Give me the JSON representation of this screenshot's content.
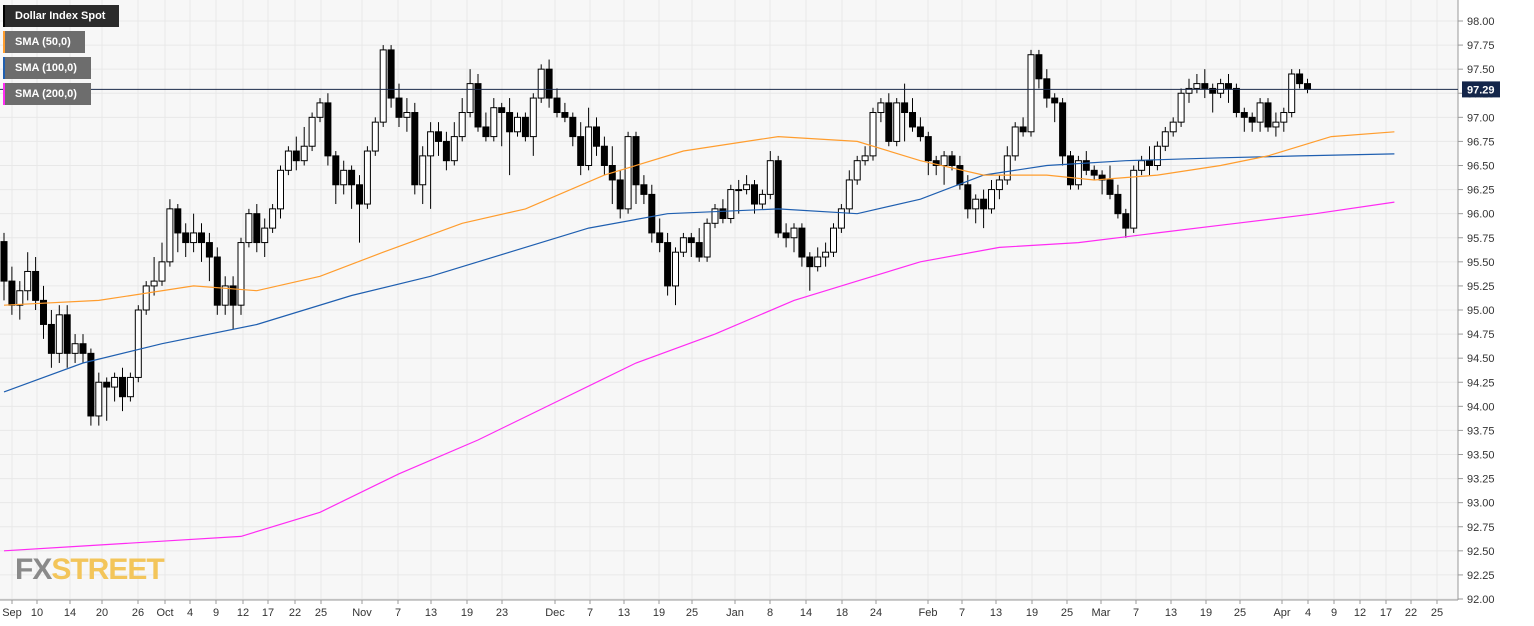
{
  "legend": [
    {
      "label": "Dollar Index Spot",
      "bg": "#2b2b2b",
      "color": "#000000"
    },
    {
      "label": "SMA (50,0)",
      "bg": "#6d6d6d",
      "color": "#ff9d2e"
    },
    {
      "label": "SMA (100,0)",
      "bg": "#6d6d6d",
      "color": "#1f5fb0"
    },
    {
      "label": "SMA (200,0)",
      "bg": "#6d6d6d",
      "color": "#ff2bf3"
    }
  ],
  "logo": {
    "fx": "FX",
    "street": "STREET"
  },
  "colors": {
    "background": "#f7f7f7",
    "grid": "#e8e8e8",
    "up_candle": "#ffffff",
    "down_candle": "#000000",
    "price_line": "#1b2a4a",
    "price_label_bg": "#14264a"
  },
  "chart_data": {
    "type": "candlestick",
    "title": "Dollar Index Spot",
    "ylim": [
      92.0,
      98.0
    ],
    "y_ticks": [
      "98.00",
      "97.75",
      "97.50",
      "97.25",
      "97.00",
      "96.75",
      "96.50",
      "96.25",
      "96.00",
      "95.75",
      "95.50",
      "95.25",
      "95.00",
      "94.75",
      "94.50",
      "94.25",
      "94.00",
      "93.75",
      "93.50",
      "93.25",
      "93.00",
      "92.75",
      "92.50",
      "92.25",
      "92.00"
    ],
    "x_ticks": [
      "Sep",
      "10",
      "14",
      "20",
      "26",
      "Oct",
      "4",
      "9",
      "12",
      "17",
      "22",
      "25",
      "Nov",
      "7",
      "13",
      "19",
      "23",
      "Dec",
      "7",
      "13",
      "19",
      "25",
      "Jan",
      "8",
      "14",
      "18",
      "24",
      "Feb",
      "7",
      "13",
      "19",
      "25",
      "Mar",
      "7",
      "13",
      "19",
      "25",
      "Apr",
      "4",
      "9",
      "12",
      "17",
      "22",
      "25"
    ],
    "last_price": "97.29",
    "candles": [
      [
        95.71,
        95.3,
        95.8,
        95.1
      ],
      [
        95.3,
        95.05,
        95.45,
        94.95
      ],
      [
        95.05,
        95.2,
        95.3,
        94.9
      ],
      [
        95.2,
        95.4,
        95.6,
        95.1
      ],
      [
        95.4,
        95.1,
        95.55,
        95.0
      ],
      [
        95.1,
        94.85,
        95.25,
        94.7
      ],
      [
        94.85,
        94.55,
        95.0,
        94.4
      ],
      [
        94.55,
        94.95,
        95.05,
        94.45
      ],
      [
        94.95,
        94.55,
        95.05,
        94.4
      ],
      [
        94.55,
        94.65,
        94.75,
        94.45
      ],
      [
        94.65,
        94.55,
        94.75,
        94.45
      ],
      [
        94.55,
        93.9,
        94.6,
        93.8
      ],
      [
        93.9,
        94.25,
        94.35,
        93.8
      ],
      [
        94.25,
        94.2,
        94.3,
        93.85
      ],
      [
        94.2,
        94.3,
        94.35,
        94.05
      ],
      [
        94.3,
        94.1,
        94.4,
        93.95
      ],
      [
        94.1,
        94.3,
        94.35,
        94.05
      ],
      [
        94.3,
        95.0,
        95.05,
        94.25
      ],
      [
        95.0,
        95.25,
        95.3,
        94.95
      ],
      [
        95.25,
        95.3,
        95.55,
        95.15
      ],
      [
        95.3,
        95.5,
        95.7,
        95.25
      ],
      [
        95.5,
        96.05,
        96.15,
        95.45
      ],
      [
        96.05,
        95.8,
        96.1,
        95.6
      ],
      [
        95.8,
        95.7,
        95.9,
        95.55
      ],
      [
        95.7,
        95.8,
        96.0,
        95.6
      ],
      [
        95.8,
        95.7,
        95.9,
        95.5
      ],
      [
        95.7,
        95.55,
        95.8,
        95.3
      ],
      [
        95.55,
        95.05,
        95.65,
        94.95
      ],
      [
        95.05,
        95.25,
        95.35,
        94.95
      ],
      [
        95.25,
        95.05,
        95.35,
        94.8
      ],
      [
        95.05,
        95.7,
        95.75,
        94.95
      ],
      [
        95.7,
        96.0,
        96.05,
        95.65
      ],
      [
        96.0,
        95.7,
        96.1,
        95.6
      ],
      [
        95.7,
        95.85,
        95.95,
        95.55
      ],
      [
        95.85,
        96.05,
        96.1,
        95.8
      ],
      [
        96.05,
        96.45,
        96.5,
        95.95
      ],
      [
        96.45,
        96.65,
        96.7,
        96.4
      ],
      [
        96.65,
        96.55,
        96.8,
        96.45
      ],
      [
        96.55,
        96.7,
        96.9,
        96.5
      ],
      [
        96.7,
        97.0,
        97.05,
        96.65
      ],
      [
        97.0,
        97.15,
        97.2,
        96.95
      ],
      [
        97.15,
        96.6,
        97.25,
        96.5
      ],
      [
        96.6,
        96.3,
        96.65,
        96.1
      ],
      [
        96.3,
        96.45,
        96.55,
        96.2
      ],
      [
        96.45,
        96.3,
        96.5,
        96.05
      ],
      [
        96.3,
        96.1,
        96.4,
        95.7
      ],
      [
        96.1,
        96.65,
        96.7,
        96.05
      ],
      [
        96.65,
        96.95,
        97.0,
        96.6
      ],
      [
        96.95,
        97.7,
        97.75,
        96.9
      ],
      [
        97.7,
        97.2,
        97.75,
        97.1
      ],
      [
        97.2,
        97.0,
        97.35,
        96.9
      ],
      [
        97.0,
        97.05,
        97.2,
        96.85
      ],
      [
        97.05,
        96.3,
        97.15,
        96.2
      ],
      [
        96.3,
        96.6,
        96.7,
        96.1
      ],
      [
        96.6,
        96.85,
        96.95,
        96.05
      ],
      [
        96.85,
        96.75,
        96.95,
        96.6
      ],
      [
        96.75,
        96.55,
        96.85,
        96.45
      ],
      [
        96.55,
        96.8,
        96.95,
        96.5
      ],
      [
        96.8,
        97.05,
        97.2,
        96.75
      ],
      [
        97.05,
        97.35,
        97.5,
        97.0
      ],
      [
        97.35,
        96.9,
        97.45,
        96.85
      ],
      [
        96.9,
        96.8,
        97.05,
        96.75
      ],
      [
        96.8,
        97.1,
        97.2,
        96.75
      ],
      [
        97.1,
        97.05,
        97.15,
        96.7
      ],
      [
        97.05,
        96.85,
        97.2,
        96.4
      ],
      [
        96.85,
        97.0,
        97.05,
        96.8
      ],
      [
        97.0,
        96.8,
        97.05,
        96.75
      ],
      [
        96.8,
        97.2,
        97.25,
        96.6
      ],
      [
        97.2,
        97.5,
        97.55,
        97.15
      ],
      [
        97.5,
        97.2,
        97.6,
        97.1
      ],
      [
        97.2,
        97.05,
        97.3,
        97.0
      ],
      [
        97.05,
        97.0,
        97.15,
        96.95
      ],
      [
        97.0,
        96.8,
        97.05,
        96.7
      ],
      [
        96.8,
        96.5,
        96.95,
        96.4
      ],
      [
        96.5,
        96.9,
        97.1,
        96.45
      ],
      [
        96.9,
        96.7,
        97.0,
        96.6
      ],
      [
        96.7,
        96.5,
        96.8,
        96.4
      ],
      [
        96.5,
        96.35,
        96.7,
        96.1
      ],
      [
        96.35,
        96.05,
        96.45,
        95.95
      ],
      [
        96.05,
        96.8,
        96.85,
        96.0
      ],
      [
        96.8,
        96.3,
        96.85,
        96.1
      ],
      [
        96.3,
        96.2,
        96.4,
        96.1
      ],
      [
        96.2,
        95.8,
        96.3,
        95.7
      ],
      [
        95.8,
        95.7,
        95.95,
        95.6
      ],
      [
        95.7,
        95.25,
        95.8,
        95.15
      ],
      [
        95.25,
        95.6,
        95.65,
        95.05
      ],
      [
        95.6,
        95.75,
        95.8,
        95.55
      ],
      [
        95.75,
        95.7,
        95.8,
        95.55
      ],
      [
        95.7,
        95.55,
        95.85,
        95.5
      ],
      [
        95.55,
        95.9,
        95.95,
        95.5
      ],
      [
        95.9,
        96.05,
        96.1,
        95.85
      ],
      [
        96.05,
        95.95,
        96.15,
        95.9
      ],
      [
        95.95,
        96.25,
        96.3,
        95.9
      ],
      [
        96.25,
        96.25,
        96.35,
        96.0
      ],
      [
        96.25,
        96.3,
        96.4,
        96.2
      ],
      [
        96.3,
        96.1,
        96.35,
        96.0
      ],
      [
        96.1,
        96.2,
        96.25,
        96.05
      ],
      [
        96.2,
        96.55,
        96.65,
        96.15
      ],
      [
        96.55,
        95.8,
        96.6,
        95.75
      ],
      [
        95.8,
        95.75,
        95.9,
        95.65
      ],
      [
        95.75,
        95.85,
        95.9,
        95.6
      ],
      [
        95.85,
        95.55,
        95.9,
        95.45
      ],
      [
        95.55,
        95.45,
        95.6,
        95.2
      ],
      [
        95.45,
        95.55,
        95.65,
        95.4
      ],
      [
        95.55,
        95.6,
        95.7,
        95.45
      ],
      [
        95.6,
        95.85,
        95.9,
        95.55
      ],
      [
        95.85,
        96.05,
        96.1,
        95.8
      ],
      [
        96.05,
        96.35,
        96.45,
        96.0
      ],
      [
        96.35,
        96.55,
        96.6,
        96.3
      ],
      [
        96.55,
        96.6,
        96.7,
        96.5
      ],
      [
        96.6,
        97.05,
        97.1,
        96.55
      ],
      [
        97.05,
        97.15,
        97.2,
        96.95
      ],
      [
        97.15,
        96.75,
        97.25,
        96.7
      ],
      [
        96.75,
        97.15,
        97.2,
        96.7
      ],
      [
        97.15,
        97.05,
        97.35,
        96.75
      ],
      [
        97.05,
        96.9,
        97.2,
        96.85
      ],
      [
        96.9,
        96.8,
        97.0,
        96.75
      ],
      [
        96.8,
        96.55,
        96.85,
        96.4
      ],
      [
        96.55,
        96.5,
        96.6,
        96.4
      ],
      [
        96.5,
        96.6,
        96.65,
        96.3
      ],
      [
        96.6,
        96.5,
        96.65,
        96.45
      ],
      [
        96.5,
        96.3,
        96.6,
        96.25
      ],
      [
        96.3,
        96.05,
        96.4,
        95.95
      ],
      [
        96.05,
        96.15,
        96.2,
        95.9
      ],
      [
        96.15,
        96.05,
        96.25,
        95.85
      ],
      [
        96.05,
        96.25,
        96.35,
        96.0
      ],
      [
        96.25,
        96.35,
        96.4,
        96.15
      ],
      [
        96.35,
        96.6,
        96.7,
        96.3
      ],
      [
        96.6,
        96.9,
        96.95,
        96.55
      ],
      [
        96.9,
        96.85,
        97.0,
        96.8
      ],
      [
        96.85,
        97.65,
        97.7,
        96.8
      ],
      [
        97.65,
        97.4,
        97.7,
        97.3
      ],
      [
        97.4,
        97.2,
        97.5,
        97.1
      ],
      [
        97.2,
        97.15,
        97.25,
        96.95
      ],
      [
        97.15,
        96.6,
        97.2,
        96.5
      ],
      [
        96.6,
        96.3,
        96.65,
        96.25
      ],
      [
        96.3,
        96.55,
        96.6,
        96.25
      ],
      [
        96.55,
        96.45,
        96.65,
        96.4
      ],
      [
        96.45,
        96.4,
        96.5,
        96.35
      ],
      [
        96.4,
        96.35,
        96.45,
        96.2
      ],
      [
        96.35,
        96.2,
        96.5,
        96.15
      ],
      [
        96.2,
        96.0,
        96.3,
        95.95
      ],
      [
        96.0,
        95.85,
        96.05,
        95.75
      ],
      [
        95.85,
        96.45,
        96.5,
        95.8
      ],
      [
        96.45,
        96.55,
        96.6,
        96.4
      ],
      [
        96.55,
        96.5,
        96.7,
        96.4
      ],
      [
        96.5,
        96.7,
        96.75,
        96.45
      ],
      [
        96.7,
        96.85,
        96.9,
        96.65
      ],
      [
        96.85,
        96.95,
        97.0,
        96.8
      ],
      [
        96.95,
        97.25,
        97.3,
        96.9
      ],
      [
        97.25,
        97.3,
        97.4,
        97.15
      ],
      [
        97.3,
        97.35,
        97.45,
        97.25
      ],
      [
        97.35,
        97.3,
        97.5,
        97.2
      ],
      [
        97.3,
        97.25,
        97.35,
        97.05
      ],
      [
        97.25,
        97.35,
        97.4,
        97.2
      ],
      [
        97.35,
        97.3,
        97.45,
        97.15
      ],
      [
        97.3,
        97.05,
        97.35,
        97.0
      ],
      [
        97.05,
        97.0,
        97.1,
        96.85
      ],
      [
        97.0,
        96.95,
        97.05,
        96.85
      ],
      [
        96.95,
        97.15,
        97.2,
        96.85
      ],
      [
        97.15,
        96.9,
        97.2,
        96.85
      ],
      [
        96.9,
        96.95,
        97.05,
        96.8
      ],
      [
        96.95,
        97.05,
        97.1,
        96.85
      ],
      [
        97.05,
        97.45,
        97.5,
        97.0
      ],
      [
        97.45,
        97.35,
        97.5,
        97.3
      ],
      [
        97.35,
        97.29,
        97.4,
        97.25
      ]
    ],
    "sma_50": [
      [
        0,
        95.05
      ],
      [
        12,
        95.1
      ],
      [
        24,
        95.25
      ],
      [
        32,
        95.2
      ],
      [
        40,
        95.35
      ],
      [
        48,
        95.6
      ],
      [
        58,
        95.9
      ],
      [
        66,
        96.05
      ],
      [
        76,
        96.4
      ],
      [
        86,
        96.65
      ],
      [
        98,
        96.8
      ],
      [
        108,
        96.75
      ],
      [
        116,
        96.55
      ],
      [
        124,
        96.4
      ],
      [
        132,
        96.4
      ],
      [
        138,
        96.35
      ],
      [
        146,
        96.4
      ],
      [
        154,
        96.5
      ],
      [
        160,
        96.6
      ],
      [
        168,
        96.8
      ],
      [
        176,
        96.85
      ]
    ],
    "sma_100": [
      [
        0,
        94.15
      ],
      [
        10,
        94.45
      ],
      [
        20,
        94.65
      ],
      [
        32,
        94.85
      ],
      [
        44,
        95.15
      ],
      [
        54,
        95.35
      ],
      [
        64,
        95.6
      ],
      [
        74,
        95.85
      ],
      [
        84,
        96.0
      ],
      [
        98,
        96.05
      ],
      [
        108,
        96.0
      ],
      [
        116,
        96.15
      ],
      [
        124,
        96.4
      ],
      [
        132,
        96.5
      ],
      [
        142,
        96.55
      ],
      [
        154,
        96.58
      ],
      [
        164,
        96.6
      ],
      [
        176,
        96.62
      ]
    ],
    "sma_200": [
      [
        0,
        92.5
      ],
      [
        10,
        92.55
      ],
      [
        20,
        92.6
      ],
      [
        30,
        92.65
      ],
      [
        40,
        92.9
      ],
      [
        50,
        93.3
      ],
      [
        60,
        93.65
      ],
      [
        70,
        94.05
      ],
      [
        80,
        94.45
      ],
      [
        90,
        94.75
      ],
      [
        100,
        95.1
      ],
      [
        108,
        95.3
      ],
      [
        116,
        95.5
      ],
      [
        126,
        95.65
      ],
      [
        136,
        95.7
      ],
      [
        146,
        95.8
      ],
      [
        156,
        95.9
      ],
      [
        166,
        96.0
      ],
      [
        176,
        96.12
      ]
    ]
  }
}
